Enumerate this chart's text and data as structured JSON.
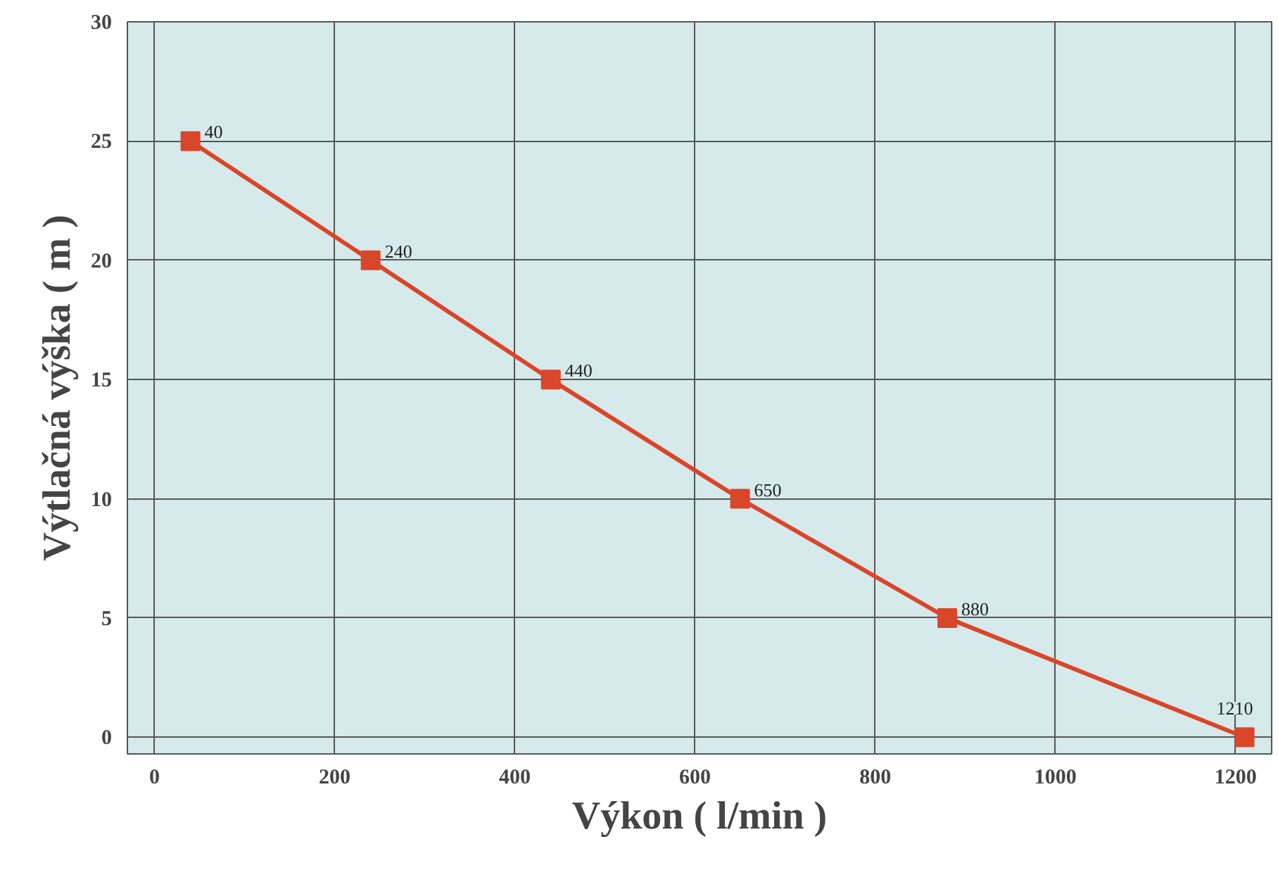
{
  "chart_data": {
    "type": "line",
    "xlabel": "Výkon ( l/min )",
    "ylabel": "Výtlačná výška ( m )",
    "x": [
      40,
      240,
      440,
      650,
      880,
      1210
    ],
    "series": [
      {
        "color": "#d9462a",
        "values": [
          25,
          20,
          15,
          10,
          5,
          0
        ]
      }
    ],
    "annotations": [
      {
        "text": "40",
        "x": 40,
        "y": 25
      },
      {
        "text": "240",
        "x": 240,
        "y": 20
      },
      {
        "text": "440",
        "x": 440,
        "y": 15
      },
      {
        "text": "650",
        "x": 650,
        "y": 10
      },
      {
        "text": "880",
        "x": 880,
        "y": 5
      },
      {
        "text": "1210",
        "x": 1210,
        "y": 0
      }
    ],
    "xlim": [
      -30,
      1240
    ],
    "ylim": [
      -0.7,
      30
    ],
    "xticks": [
      0,
      200,
      400,
      600,
      800,
      1000,
      1200
    ],
    "yticks": [
      0,
      5,
      10,
      15,
      20,
      25,
      30
    ],
    "grid": true,
    "marker": "square",
    "line_style": "solid"
  }
}
